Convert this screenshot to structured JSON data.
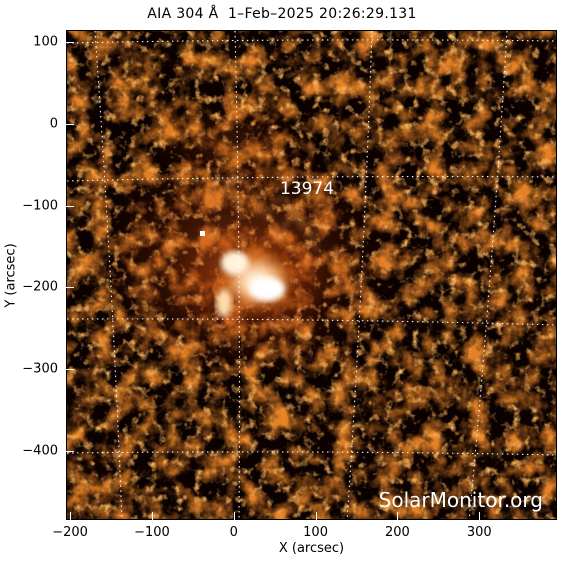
{
  "title": "AIA 304 Å  1–Feb–2025 20:26:29.131",
  "region_label": "13974",
  "watermark": "SolarMonitor.org",
  "colors": {
    "background": "#000000",
    "hot": "#ffffff",
    "mid": "#d2560f",
    "dim": "#4a0c00",
    "grid": "#ffffff"
  },
  "chart_data": {
    "type": "heatmap",
    "xlabel": "X (arcsec)",
    "ylabel": "Y (arcsec)",
    "xlim": [
      -205,
      395
    ],
    "ylim": [
      -485,
      115
    ],
    "x_ticks": [
      "−200",
      "−100",
      "0",
      "100",
      "200",
      "300"
    ],
    "y_ticks": [
      "100",
      "0",
      "−100",
      "−200",
      "−300",
      "−400"
    ]
  }
}
